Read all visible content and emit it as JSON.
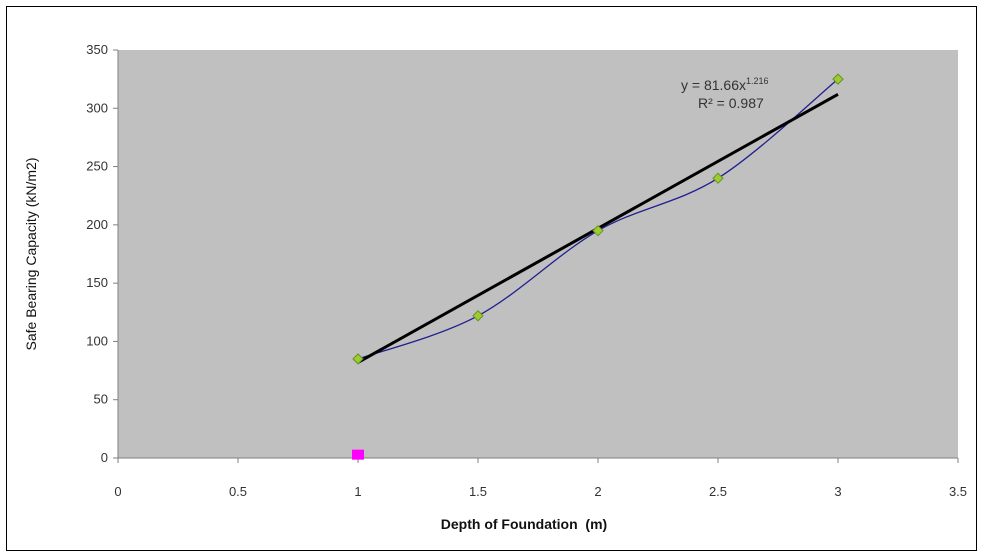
{
  "chart_data": {
    "type": "scatter",
    "xlabel": "Depth of Foundation  (m)",
    "ylabel": "Safe Bearing Capacity (kN/m2)",
    "xlim": [
      0,
      3.5
    ],
    "ylim": [
      0,
      350
    ],
    "x_ticks": [
      "0",
      "0.5",
      "1",
      "1.5",
      "2",
      "2.5",
      "3",
      "3.5"
    ],
    "y_ticks": [
      "0",
      "50",
      "100",
      "150",
      "200",
      "250",
      "300",
      "350"
    ],
    "grid": false,
    "plot_background": "#c0c0c0",
    "series": [
      {
        "type": "scatter-smooth-line",
        "x": [
          1,
          1.5,
          2,
          2.5,
          3
        ],
        "y": [
          85,
          122,
          195,
          240,
          325
        ],
        "line_color": "#1f1f8f",
        "marker_color": "#9acd32"
      },
      {
        "type": "scatter",
        "x": [
          1
        ],
        "y": [
          2
        ],
        "marker_color": "#ff00ff"
      },
      {
        "type": "trendline",
        "x": [
          1,
          3
        ],
        "y": [
          82,
          312
        ],
        "line_color": "#000000"
      }
    ],
    "annotation": {
      "equation_base": "y = 81.66x",
      "equation_exponent": "1.216",
      "r_squared": "R² = 0.987"
    }
  }
}
